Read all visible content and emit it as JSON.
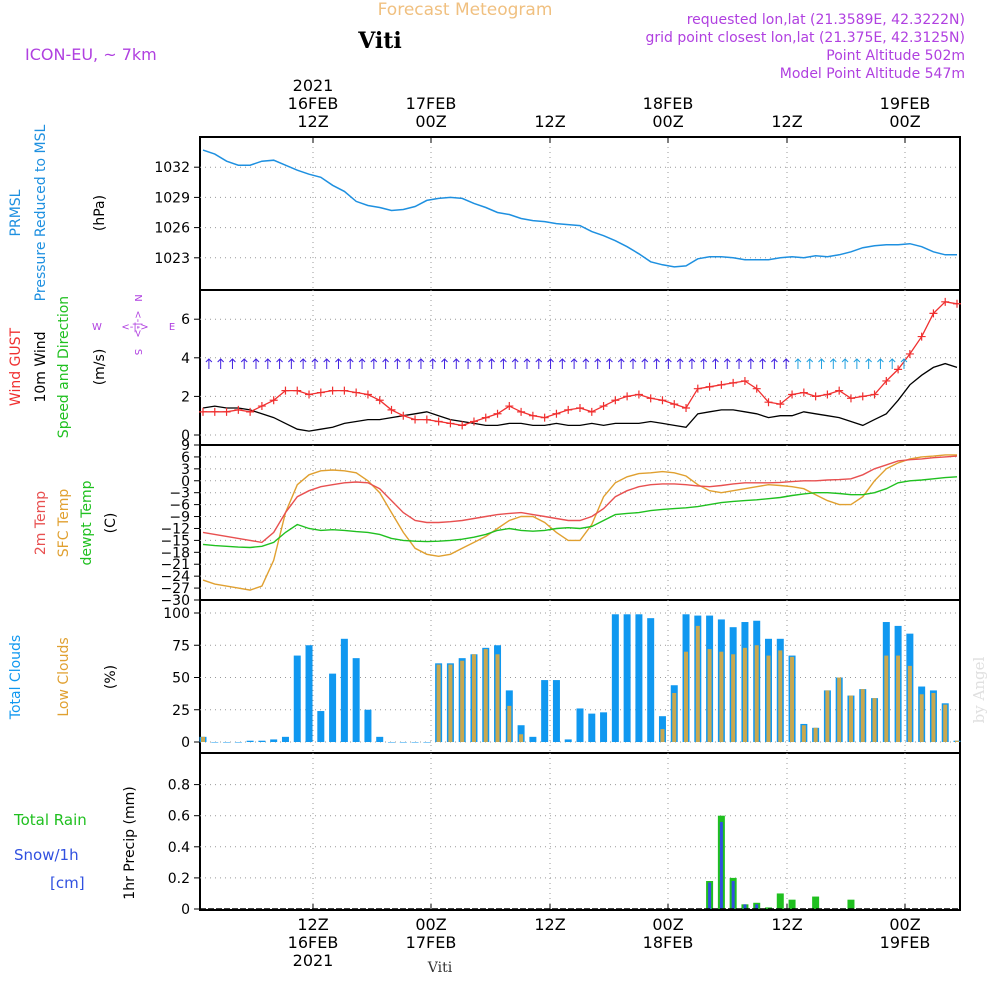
{
  "header": {
    "title": "Forecast Meteogram",
    "station": "Viti",
    "model": "ICON-EU, ~ 7km",
    "requested": "requested lon,lat (21.3589E, 42.3222N)",
    "gridpoint": "grid point closest lon,lat (21.375E, 42.3125N)",
    "point_alt": "Point Altitude 502m",
    "model_alt": "Model Point Altitude 547m",
    "footer_station": "Viti",
    "watermark": "by Angel"
  },
  "colors": {
    "pressure": "#1e90e0",
    "gust": "#f03030",
    "wind": "#000000",
    "dir": "#20c020",
    "temp2m": "#e85050",
    "sfc": "#e0a030",
    "dewpt": "#20c020",
    "total_cloud": "#1098f0",
    "low_cloud": "#c8a850",
    "rain": "#20c020",
    "snow": "#3050e0",
    "meta": "#b040e0",
    "title": "#f0c080"
  },
  "time_axis": {
    "top": [
      {
        "lines": [
          "2021",
          "16FEB",
          "12Z"
        ]
      },
      {
        "lines": [
          "17FEB",
          "00Z"
        ]
      },
      {
        "lines": [
          "12Z"
        ]
      },
      {
        "lines": [
          "18FEB",
          "00Z"
        ]
      },
      {
        "lines": [
          "12Z"
        ]
      },
      {
        "lines": [
          "19FEB",
          "00Z"
        ]
      }
    ],
    "bottom": [
      {
        "lines": [
          "12Z",
          "16FEB",
          "2021"
        ]
      },
      {
        "lines": [
          "00Z",
          "17FEB"
        ]
      },
      {
        "lines": [
          "12Z"
        ]
      },
      {
        "lines": [
          "00Z",
          "18FEB"
        ]
      },
      {
        "lines": [
          "12Z"
        ]
      },
      {
        "lines": [
          "00Z",
          "19FEB"
        ]
      }
    ]
  },
  "chart_data": [
    {
      "type": "line",
      "name": "pressure",
      "labels": {
        "l1": "PRMSL",
        "l2": "Pressure Reduced to MSL",
        "unit": "(hPa)"
      },
      "ylim": [
        1020,
        1035
      ],
      "yticks": [
        1023,
        1026,
        1029,
        1032
      ],
      "x_hours": [
        0,
        1,
        2,
        3,
        4,
        5,
        6,
        7,
        8,
        9,
        10,
        11,
        12,
        13,
        14,
        15,
        16,
        17,
        18,
        19,
        20,
        21,
        22,
        23,
        24,
        25,
        26,
        27,
        28,
        29,
        30,
        31,
        32,
        33,
        34,
        35,
        36,
        37,
        38,
        39,
        40,
        41,
        42,
        43,
        44,
        45,
        46,
        47,
        48,
        49,
        50,
        51,
        52,
        53,
        54,
        55,
        56,
        57,
        58,
        59,
        60,
        61,
        62,
        63,
        64
      ],
      "values": [
        1033.7,
        1033.3,
        1032.6,
        1032.2,
        1032.2,
        1032.6,
        1032.7,
        1032.2,
        1031.7,
        1031.3,
        1031.0,
        1030.2,
        1029.6,
        1028.6,
        1028.2,
        1028.0,
        1027.7,
        1027.8,
        1028.1,
        1028.7,
        1028.9,
        1029.0,
        1028.9,
        1028.4,
        1028.0,
        1027.5,
        1027.3,
        1026.9,
        1026.7,
        1026.6,
        1026.4,
        1026.3,
        1026.2,
        1025.6,
        1025.2,
        1024.7,
        1024.1,
        1023.4,
        1022.6,
        1022.3,
        1022.1,
        1022.2,
        1022.9,
        1023.1,
        1023.1,
        1023.0,
        1022.8,
        1022.8,
        1022.8,
        1023.0,
        1023.1,
        1023.0,
        1023.2,
        1023.1,
        1023.3,
        1023.6,
        1024.0,
        1024.2,
        1024.3,
        1024.3,
        1024.4,
        1024.1,
        1023.6,
        1023.3,
        1023.3
      ]
    },
    {
      "type": "line",
      "name": "wind",
      "labels": {
        "gust": "Wind GUST",
        "wind": "10m Wind",
        "dir": "Speed and Direction",
        "unit": "(m/s)"
      },
      "compass": {
        "n": "N",
        "s": "S",
        "w": "W",
        "e": "E",
        "arrow": "<-|->"
      },
      "ylim": [
        0,
        7.5
      ],
      "yticks": [
        0,
        2,
        4,
        6
      ],
      "x_hours": [
        0,
        1,
        2,
        3,
        4,
        5,
        6,
        7,
        8,
        9,
        10,
        11,
        12,
        13,
        14,
        15,
        16,
        17,
        18,
        19,
        20,
        21,
        22,
        23,
        24,
        25,
        26,
        27,
        28,
        29,
        30,
        31,
        32,
        33,
        34,
        35,
        36,
        37,
        38,
        39,
        40,
        41,
        42,
        43,
        44,
        45,
        46,
        47,
        48,
        49,
        50,
        51,
        52,
        53,
        54,
        55,
        56,
        57,
        58,
        59,
        60,
        61,
        62,
        63,
        64
      ],
      "series": [
        {
          "name": "Wind GUST",
          "values": [
            1.2,
            1.2,
            1.2,
            1.3,
            1.2,
            1.5,
            1.8,
            2.3,
            2.3,
            2.1,
            2.2,
            2.3,
            2.3,
            2.2,
            2.1,
            1.8,
            1.3,
            1.0,
            0.8,
            0.8,
            0.7,
            0.6,
            0.5,
            0.7,
            0.9,
            1.1,
            1.5,
            1.2,
            1.0,
            0.9,
            1.1,
            1.3,
            1.4,
            1.2,
            1.5,
            1.8,
            2.0,
            2.1,
            1.9,
            1.8,
            1.6,
            1.4,
            2.4,
            2.5,
            2.6,
            2.7,
            2.8,
            2.4,
            1.7,
            1.6,
            2.1,
            2.2,
            2.0,
            2.1,
            2.3,
            1.9,
            2.0,
            2.1,
            2.8,
            3.4,
            4.2,
            5.1,
            6.3,
            6.9,
            6.8
          ]
        },
        {
          "name": "10m Wind",
          "values": [
            1.4,
            1.5,
            1.4,
            1.4,
            1.3,
            1.1,
            0.9,
            0.6,
            0.3,
            0.2,
            0.3,
            0.4,
            0.6,
            0.7,
            0.8,
            0.8,
            0.9,
            1.0,
            1.1,
            1.2,
            1.0,
            0.8,
            0.7,
            0.6,
            0.5,
            0.5,
            0.6,
            0.6,
            0.5,
            0.5,
            0.6,
            0.5,
            0.5,
            0.6,
            0.5,
            0.6,
            0.6,
            0.6,
            0.7,
            0.6,
            0.5,
            0.4,
            1.1,
            1.2,
            1.3,
            1.3,
            1.2,
            1.1,
            0.9,
            1.0,
            1.0,
            1.2,
            1.1,
            1.0,
            0.9,
            0.7,
            0.5,
            0.8,
            1.1,
            1.8,
            2.6,
            3.1,
            3.5,
            3.7,
            3.5
          ]
        }
      ]
    },
    {
      "type": "line",
      "name": "temperature",
      "labels": {
        "t2m": "2m Temp",
        "sfc": "SFC Temp",
        "dew": "dewpt Temp",
        "unit": "(C)"
      },
      "ylim": [
        -30,
        9
      ],
      "yticks": [
        9,
        6,
        3,
        0,
        -3,
        -6,
        -9,
        -12,
        -15,
        -18,
        -21,
        -24,
        -27,
        -30
      ],
      "x_hours": [
        0,
        1,
        2,
        3,
        4,
        5,
        6,
        7,
        8,
        9,
        10,
        11,
        12,
        13,
        14,
        15,
        16,
        17,
        18,
        19,
        20,
        21,
        22,
        23,
        24,
        25,
        26,
        27,
        28,
        29,
        30,
        31,
        32,
        33,
        34,
        35,
        36,
        37,
        38,
        39,
        40,
        41,
        42,
        43,
        44,
        45,
        46,
        47,
        48,
        49,
        50,
        51,
        52,
        53,
        54,
        55,
        56,
        57,
        58,
        59,
        60,
        61,
        62,
        63,
        64
      ],
      "series": [
        {
          "name": "2m Temp",
          "values": [
            -13,
            -13.5,
            -14,
            -14.5,
            -15,
            -15.5,
            -13,
            -8,
            -4,
            -2.5,
            -1.5,
            -1,
            -0.5,
            -0.3,
            -0.5,
            -2,
            -5,
            -8,
            -10,
            -10.5,
            -10.5,
            -10.3,
            -10,
            -9.5,
            -9,
            -8.5,
            -8.2,
            -8,
            -8.5,
            -9,
            -9.5,
            -10,
            -10,
            -9,
            -7,
            -4,
            -2.5,
            -1.5,
            -1,
            -0.8,
            -0.8,
            -1,
            -1.3,
            -1.5,
            -1.2,
            -0.8,
            -0.5,
            -0.5,
            -0.5,
            -0.4,
            -0.2,
            0,
            0,
            0.2,
            0.3,
            0.5,
            1.5,
            3,
            4,
            5,
            5.3,
            5.5,
            5.8,
            6,
            6.2
          ]
        },
        {
          "name": "SFC Temp",
          "values": [
            -25,
            -26,
            -26.5,
            -27,
            -27.5,
            -26.5,
            -20,
            -8,
            -1,
            1.5,
            2.5,
            2.7,
            2.5,
            2,
            0,
            -3,
            -8,
            -13,
            -17,
            -18.5,
            -19,
            -18.5,
            -17,
            -15.5,
            -14,
            -12,
            -10,
            -9,
            -9,
            -10.5,
            -13,
            -15,
            -15,
            -11,
            -4,
            -0.5,
            1,
            1.8,
            2,
            2.3,
            2,
            1.2,
            -1,
            -2.5,
            -3,
            -2.5,
            -2,
            -1.5,
            -1,
            -1.2,
            -1.5,
            -2,
            -3.5,
            -5,
            -6,
            -6,
            -4,
            0,
            3,
            4.5,
            5.5,
            6,
            6.2,
            6.5,
            6.5
          ]
        },
        {
          "name": "dewpt Temp",
          "values": [
            -16,
            -16.3,
            -16.5,
            -16.7,
            -16.8,
            -16.5,
            -15.5,
            -13,
            -11,
            -12,
            -12.5,
            -12.3,
            -12.5,
            -12.8,
            -13,
            -13.5,
            -14.5,
            -15,
            -15.2,
            -15.3,
            -15.2,
            -15,
            -14.7,
            -14.2,
            -13.5,
            -12.5,
            -12,
            -12.5,
            -12.7,
            -12.5,
            -12,
            -11.8,
            -12,
            -11.5,
            -10,
            -8.5,
            -8.2,
            -8,
            -7.5,
            -7.2,
            -7,
            -6.8,
            -6.5,
            -6,
            -5.5,
            -5.2,
            -5,
            -4.8,
            -4.5,
            -4.2,
            -3.7,
            -3.3,
            -3,
            -3,
            -3.2,
            -3.5,
            -3.5,
            -3,
            -2,
            -0.5,
            0,
            0.2,
            0.5,
            0.8,
            1.0
          ]
        }
      ]
    },
    {
      "type": "bar",
      "name": "clouds",
      "labels": {
        "total": "Total Clouds",
        "low": "Low Clouds",
        "unit": "(%)"
      },
      "ylim": [
        0,
        100
      ],
      "yticks": [
        0,
        25,
        50,
        75,
        100
      ],
      "x_hours": [
        0,
        1,
        2,
        3,
        4,
        5,
        6,
        7,
        8,
        9,
        10,
        11,
        12,
        13,
        14,
        15,
        16,
        17,
        18,
        19,
        20,
        21,
        22,
        23,
        24,
        25,
        26,
        27,
        28,
        29,
        30,
        31,
        32,
        33,
        34,
        35,
        36,
        37,
        38,
        39,
        40,
        41,
        42,
        43,
        44,
        45,
        46,
        47,
        48,
        49,
        50,
        51,
        52,
        53,
        54,
        55,
        56,
        57,
        58,
        59,
        60,
        61,
        62,
        63,
        64
      ],
      "series": [
        {
          "name": "Total Clouds",
          "values": [
            4,
            0,
            0,
            0,
            1,
            1,
            2,
            4,
            67,
            75,
            24,
            53,
            80,
            65,
            25,
            4,
            0,
            0,
            0,
            0,
            61,
            61,
            65,
            68,
            73,
            75,
            40,
            13,
            4,
            48,
            48,
            2,
            26,
            22,
            23,
            99,
            99,
            99,
            96,
            20,
            44,
            99,
            98,
            98,
            95,
            89,
            93,
            94,
            80,
            80,
            67,
            14,
            11,
            40,
            50,
            36,
            41,
            34,
            93,
            90,
            84,
            43,
            40,
            30,
            1
          ]
        },
        {
          "name": "Low Clouds",
          "values": [
            4,
            0,
            0,
            0,
            0,
            0,
            0,
            0,
            0,
            0,
            0,
            0,
            0,
            0,
            0,
            0,
            0,
            0,
            0,
            0,
            60,
            60,
            63,
            68,
            72,
            68,
            28,
            6,
            0,
            0,
            0,
            0,
            0,
            0,
            0,
            0,
            0,
            0,
            0,
            10,
            38,
            70,
            90,
            72,
            70,
            68,
            73,
            75,
            67,
            71,
            66,
            13,
            11,
            40,
            50,
            36,
            41,
            34,
            67,
            67,
            59,
            37,
            38,
            29,
            1
          ]
        }
      ]
    },
    {
      "type": "bar",
      "name": "precip",
      "labels": {
        "total_rain": "Total  Rain",
        "snow": "Snow/1h",
        "cm": "[cm]",
        "unit": "1hr Precip (mm)"
      },
      "ylim": [
        0,
        1.0
      ],
      "yticks": [
        0,
        0.2,
        0.4,
        0.6,
        0.8
      ],
      "ytick_labels": [
        "0",
        "0.2",
        "0.4",
        "0.6",
        "0.8"
      ],
      "x_hours": [
        0,
        1,
        2,
        3,
        4,
        5,
        6,
        7,
        8,
        9,
        10,
        11,
        12,
        13,
        14,
        15,
        16,
        17,
        18,
        19,
        20,
        21,
        22,
        23,
        24,
        25,
        26,
        27,
        28,
        29,
        30,
        31,
        32,
        33,
        34,
        35,
        36,
        37,
        38,
        39,
        40,
        41,
        42,
        43,
        44,
        45,
        46,
        47,
        48,
        49,
        50,
        51,
        52,
        53,
        54,
        55,
        56,
        57,
        58,
        59,
        60,
        61,
        62,
        63,
        64
      ],
      "series": [
        {
          "name": "Total Rain",
          "values": [
            0,
            0,
            0,
            0,
            0,
            0,
            0,
            0,
            0,
            0,
            0,
            0,
            0,
            0,
            0,
            0,
            0,
            0,
            0,
            0,
            0,
            0,
            0,
            0,
            0,
            0,
            0,
            0,
            0,
            0,
            0,
            0,
            0,
            0,
            0,
            0,
            0,
            0,
            0,
            0,
            0,
            0,
            0,
            0.18,
            0.6,
            0.2,
            0.03,
            0.04,
            0.01,
            0.1,
            0.06,
            0,
            0.08,
            0,
            0,
            0.06,
            0,
            0,
            0,
            0,
            0,
            0,
            0,
            0,
            0
          ]
        },
        {
          "name": "Snow/1h",
          "values": [
            0,
            0,
            0,
            0,
            0,
            0,
            0,
            0,
            0,
            0,
            0,
            0,
            0,
            0,
            0,
            0,
            0,
            0,
            0,
            0,
            0,
            0,
            0,
            0,
            0,
            0,
            0,
            0,
            0,
            0,
            0,
            0,
            0,
            0,
            0,
            0,
            0,
            0,
            0,
            0,
            0,
            0,
            0,
            0.17,
            0.56,
            0.18,
            0.03,
            0.03,
            0,
            0,
            0,
            0,
            0,
            0,
            0,
            0,
            0,
            0,
            0,
            0,
            0,
            0,
            0,
            0,
            0
          ]
        }
      ]
    }
  ]
}
